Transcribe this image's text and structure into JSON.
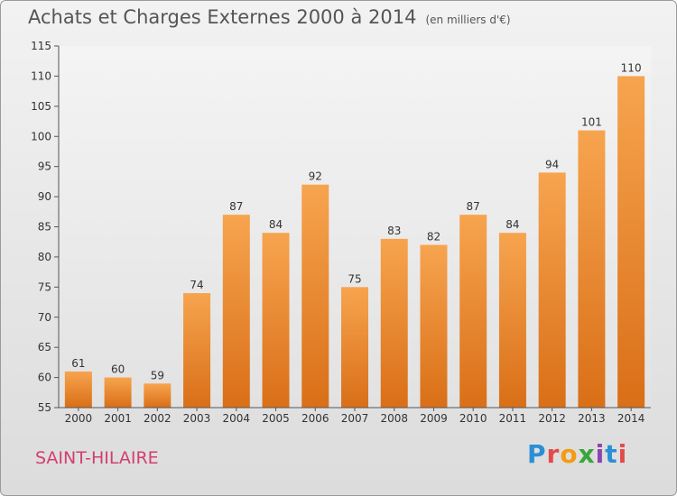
{
  "header": {
    "title": "Achats et Charges Externes 2000 à 2014",
    "unit": "(en milliers d'€)"
  },
  "footer": {
    "city": "SAINT-HILAIRE",
    "brand": "Proxiti"
  },
  "colors": {
    "bar_top": "#f7a44f",
    "bar_bottom": "#d96f17",
    "city": "#d23f6e"
  },
  "chart_data": {
    "type": "bar",
    "title": "Achats et Charges Externes 2000 à 2014",
    "subtitle": "(en milliers d'€)",
    "categories": [
      "2000",
      "2001",
      "2002",
      "2003",
      "2004",
      "2005",
      "2006",
      "2007",
      "2008",
      "2009",
      "2010",
      "2011",
      "2012",
      "2013",
      "2014"
    ],
    "values": [
      61,
      60,
      59,
      74,
      87,
      84,
      92,
      75,
      83,
      82,
      87,
      84,
      94,
      101,
      110
    ],
    "ylim": [
      55,
      115
    ],
    "yticks": [
      55,
      60,
      65,
      70,
      75,
      80,
      85,
      90,
      95,
      100,
      105,
      110,
      115
    ],
    "grid": false,
    "data_labels": true
  }
}
